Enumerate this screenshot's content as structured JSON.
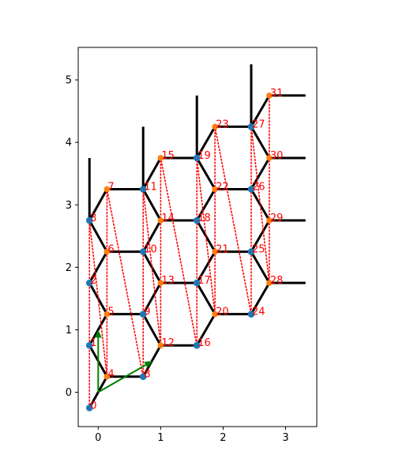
{
  "chart_data": {
    "type": "scatter",
    "title": "",
    "xlabel": "",
    "ylabel": "",
    "xlim": [
      -0.32,
      3.5
    ],
    "ylim": [
      -0.55,
      5.52
    ],
    "xticks": [
      0,
      1,
      2,
      3
    ],
    "yticks": [
      0,
      1,
      2,
      3,
      4,
      5
    ],
    "grid": false,
    "colors": {
      "bond": "#000000",
      "site_a": "#1f77b4",
      "site_b": "#ff7f0e",
      "order_path": "#ff0000",
      "lattice_vector": "#008000",
      "label": "#ff0000"
    },
    "nodes": [
      {
        "id": "0",
        "x": -0.14,
        "y": -0.25,
        "sublattice": "a"
      },
      {
        "id": "1",
        "x": -0.14,
        "y": 0.75,
        "sublattice": "a"
      },
      {
        "id": "2",
        "x": -0.14,
        "y": 1.75,
        "sublattice": "a"
      },
      {
        "id": "3",
        "x": -0.14,
        "y": 2.75,
        "sublattice": "a"
      },
      {
        "id": "4",
        "x": 0.14,
        "y": 0.25,
        "sublattice": "b"
      },
      {
        "id": "5",
        "x": 0.14,
        "y": 1.25,
        "sublattice": "b"
      },
      {
        "id": "6",
        "x": 0.14,
        "y": 2.25,
        "sublattice": "b"
      },
      {
        "id": "7",
        "x": 0.14,
        "y": 3.25,
        "sublattice": "b"
      },
      {
        "id": "8",
        "x": 0.72,
        "y": 0.25,
        "sublattice": "a"
      },
      {
        "id": "9",
        "x": 0.72,
        "y": 1.25,
        "sublattice": "a"
      },
      {
        "id": "10",
        "x": 0.72,
        "y": 2.25,
        "sublattice": "a"
      },
      {
        "id": "11",
        "x": 0.72,
        "y": 3.25,
        "sublattice": "a"
      },
      {
        "id": "12",
        "x": 1.0,
        "y": 0.75,
        "sublattice": "b"
      },
      {
        "id": "13",
        "x": 1.0,
        "y": 1.75,
        "sublattice": "b"
      },
      {
        "id": "14",
        "x": 1.0,
        "y": 2.75,
        "sublattice": "b"
      },
      {
        "id": "15",
        "x": 1.0,
        "y": 3.75,
        "sublattice": "b"
      },
      {
        "id": "16",
        "x": 1.58,
        "y": 0.75,
        "sublattice": "a"
      },
      {
        "id": "17",
        "x": 1.58,
        "y": 1.75,
        "sublattice": "a"
      },
      {
        "id": "18",
        "x": 1.58,
        "y": 2.75,
        "sublattice": "a"
      },
      {
        "id": "19",
        "x": 1.58,
        "y": 3.75,
        "sublattice": "a"
      },
      {
        "id": "20",
        "x": 1.87,
        "y": 1.25,
        "sublattice": "b"
      },
      {
        "id": "21",
        "x": 1.87,
        "y": 2.25,
        "sublattice": "b"
      },
      {
        "id": "22",
        "x": 1.87,
        "y": 3.25,
        "sublattice": "b"
      },
      {
        "id": "23",
        "x": 1.87,
        "y": 4.25,
        "sublattice": "b"
      },
      {
        "id": "24",
        "x": 2.45,
        "y": 1.25,
        "sublattice": "a"
      },
      {
        "id": "25",
        "x": 2.45,
        "y": 2.25,
        "sublattice": "a"
      },
      {
        "id": "26",
        "x": 2.45,
        "y": 3.25,
        "sublattice": "a"
      },
      {
        "id": "27",
        "x": 2.45,
        "y": 4.25,
        "sublattice": "a"
      },
      {
        "id": "28",
        "x": 2.74,
        "y": 1.75,
        "sublattice": "b"
      },
      {
        "id": "29",
        "x": 2.74,
        "y": 2.75,
        "sublattice": "b"
      },
      {
        "id": "30",
        "x": 2.74,
        "y": 3.75,
        "sublattice": "b"
      },
      {
        "id": "31",
        "x": 2.74,
        "y": 4.75,
        "sublattice": "b"
      }
    ],
    "bonds": [
      [
        "0",
        "4"
      ],
      [
        "1",
        "4"
      ],
      [
        "1",
        "5"
      ],
      [
        "2",
        "5"
      ],
      [
        "2",
        "6"
      ],
      [
        "3",
        "6"
      ],
      [
        "3",
        "7"
      ],
      [
        "4",
        "8"
      ],
      [
        "5",
        "9"
      ],
      [
        "6",
        "10"
      ],
      [
        "7",
        "11"
      ],
      [
        "8",
        "12"
      ],
      [
        "9",
        "12"
      ],
      [
        "9",
        "13"
      ],
      [
        "10",
        "13"
      ],
      [
        "10",
        "14"
      ],
      [
        "11",
        "14"
      ],
      [
        "11",
        "15"
      ],
      [
        "12",
        "16"
      ],
      [
        "13",
        "17"
      ],
      [
        "14",
        "18"
      ],
      [
        "15",
        "19"
      ],
      [
        "16",
        "20"
      ],
      [
        "17",
        "20"
      ],
      [
        "17",
        "21"
      ],
      [
        "18",
        "21"
      ],
      [
        "18",
        "22"
      ],
      [
        "19",
        "22"
      ],
      [
        "19",
        "23"
      ],
      [
        "20",
        "24"
      ],
      [
        "21",
        "25"
      ],
      [
        "22",
        "26"
      ],
      [
        "23",
        "27"
      ],
      [
        "24",
        "28"
      ],
      [
        "25",
        "28"
      ],
      [
        "25",
        "29"
      ],
      [
        "26",
        "29"
      ],
      [
        "26",
        "30"
      ],
      [
        "27",
        "30"
      ],
      [
        "27",
        "31"
      ]
    ],
    "dangling_bonds": [
      {
        "from": "3",
        "to": [
          -0.14,
          3.75
        ]
      },
      {
        "from": "11",
        "to": [
          0.72,
          4.25
        ]
      },
      {
        "from": "19",
        "to": [
          1.58,
          4.75
        ]
      },
      {
        "from": "27",
        "to": [
          2.45,
          5.25
        ]
      },
      {
        "from": "28",
        "to": [
          3.32,
          1.75
        ]
      },
      {
        "from": "29",
        "to": [
          3.32,
          2.75
        ]
      },
      {
        "from": "30",
        "to": [
          3.32,
          3.75
        ]
      },
      {
        "from": "31",
        "to": [
          3.32,
          4.75
        ]
      }
    ],
    "order_path": [
      "0",
      "1",
      "2",
      "3",
      "4",
      "5",
      "6",
      "7",
      "8",
      "9",
      "10",
      "11",
      "12",
      "13",
      "14",
      "15",
      "16",
      "17",
      "18",
      "19",
      "20",
      "21",
      "22",
      "23",
      "24",
      "25",
      "26",
      "27",
      "28",
      "29",
      "30",
      "31"
    ],
    "lattice_vectors": [
      {
        "from": [
          0,
          0
        ],
        "to": [
          0,
          1.0
        ]
      },
      {
        "from": [
          0,
          0
        ],
        "to": [
          0.87,
          0.5
        ]
      }
    ]
  }
}
